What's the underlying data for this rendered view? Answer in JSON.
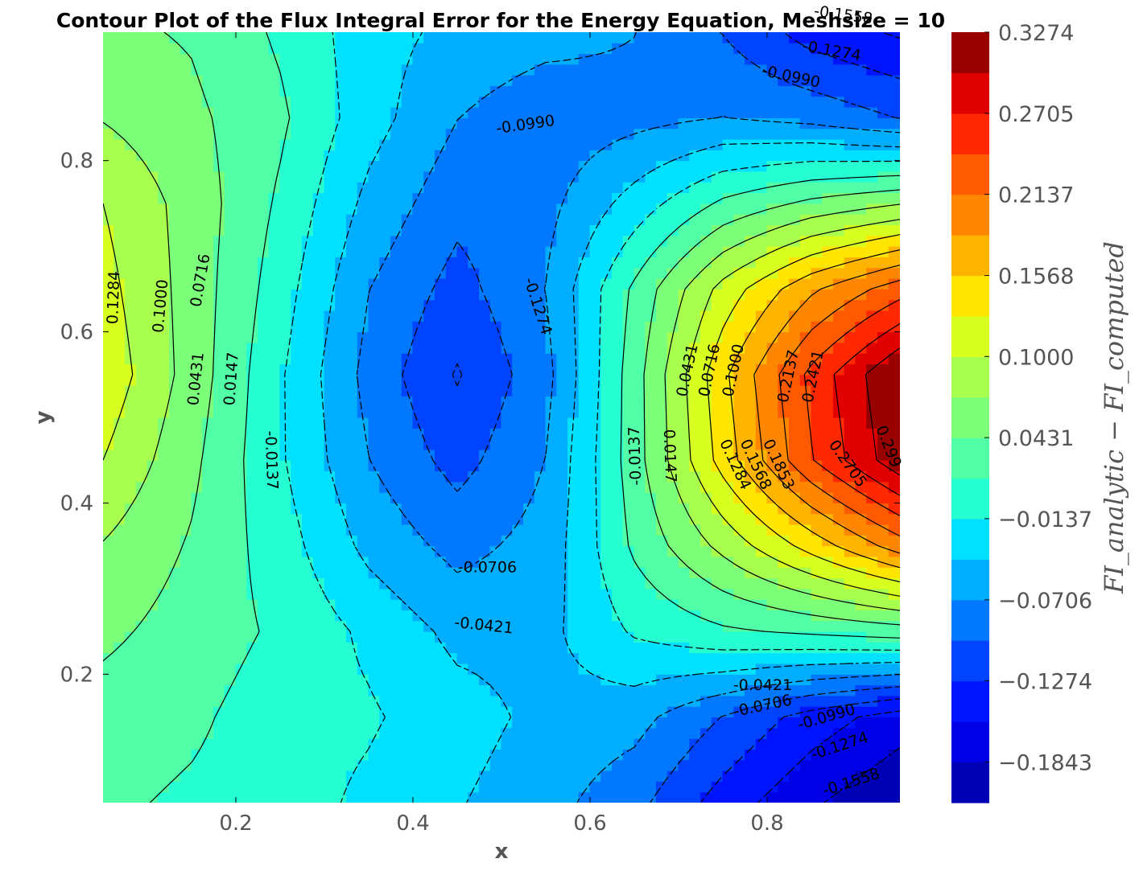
{
  "chart_data": {
    "type": "contour",
    "title": "Contour Plot of the Flux Integral Error for the Energy Equation, Meshsize = 10",
    "xlabel": "x",
    "ylabel": "y",
    "xlim": [
      0.05,
      0.95
    ],
    "ylim": [
      0.05,
      0.95
    ],
    "x_ticks": [
      "0.2",
      "0.4",
      "0.6",
      "0.8"
    ],
    "y_ticks": [
      "0.2",
      "0.4",
      "0.6",
      "0.8"
    ],
    "colorbar": {
      "label": "FI_analytic − FI_computed",
      "range": [
        -0.2128,
        0.3274
      ],
      "tick_labels": [
        "0.3274",
        "0.2705",
        "0.2137",
        "0.1568",
        "0.1000",
        "0.0431",
        "−0.0137",
        "−0.0706",
        "−0.1274",
        "−0.1843"
      ],
      "colors": [
        "#990000",
        "#e10000",
        "#ff2800",
        "#ff5a00",
        "#ff8700",
        "#ffb400",
        "#ffe600",
        "#d7ff1f",
        "#a8ff4d",
        "#7cff79",
        "#50ffa6",
        "#25ffd2",
        "#00e1ff",
        "#00aeff",
        "#0078ff",
        "#0044ff",
        "#0014ff",
        "#0000e6",
        "#0000b4"
      ]
    },
    "levels": [
      -0.2128,
      -0.1843,
      -0.1558,
      -0.1274,
      -0.099,
      -0.0706,
      -0.0421,
      -0.0137,
      0.0147,
      0.0431,
      0.0716,
      0.1,
      0.1284,
      0.1568,
      0.1853,
      0.2137,
      0.2421,
      0.2705,
      0.299,
      0.3274
    ],
    "grid_x": [
      0.05,
      0.15,
      0.25,
      0.35,
      0.45,
      0.55,
      0.65,
      0.75,
      0.85,
      0.95
    ],
    "grid_y": [
      0.05,
      0.15,
      0.25,
      0.35,
      0.45,
      0.55,
      0.65,
      0.75,
      0.85,
      0.95
    ],
    "z": [
      [
        0.02,
        0.01,
        0.0,
        -0.02,
        -0.04,
        -0.06,
        -0.09,
        -0.14,
        -0.18,
        -0.21
      ],
      [
        0.03,
        0.02,
        0.0,
        -0.01,
        -0.03,
        -0.05,
        -0.06,
        -0.1,
        -0.14,
        -0.17
      ],
      [
        0.05,
        0.03,
        0.01,
        -0.02,
        -0.05,
        -0.05,
        -0.01,
        0.01,
        0.02,
        0.03
      ],
      [
        0.07,
        0.04,
        0.0,
        -0.05,
        -0.08,
        -0.06,
        0.02,
        0.08,
        0.14,
        0.2
      ],
      [
        0.1,
        0.05,
        -0.01,
        -0.07,
        -0.11,
        -0.07,
        0.03,
        0.14,
        0.24,
        0.32
      ],
      [
        0.12,
        0.06,
        -0.01,
        -0.08,
        -0.13,
        -0.08,
        0.03,
        0.15,
        0.25,
        0.33
      ],
      [
        0.11,
        0.06,
        0.0,
        -0.07,
        -0.11,
        -0.07,
        0.02,
        0.11,
        0.18,
        0.23
      ],
      [
        0.1,
        0.06,
        0.01,
        -0.05,
        -0.09,
        -0.08,
        -0.03,
        0.02,
        0.05,
        0.07
      ],
      [
        0.07,
        0.05,
        0.02,
        -0.03,
        -0.07,
        -0.09,
        -0.08,
        -0.07,
        -0.08,
        -0.1
      ],
      [
        0.05,
        0.04,
        0.01,
        -0.03,
        -0.05,
        -0.06,
        -0.07,
        -0.1,
        -0.14,
        -0.16
      ]
    ],
    "contour_labels": [
      {
        "text": "0.1284",
        "x": 0.062,
        "y": 0.64,
        "angle": -88
      },
      {
        "text": "0.1000",
        "x": 0.115,
        "y": 0.63,
        "angle": -85
      },
      {
        "text": "0.0716",
        "x": 0.16,
        "y": 0.66,
        "angle": -80
      },
      {
        "text": "0.0431",
        "x": 0.155,
        "y": 0.545,
        "angle": -84
      },
      {
        "text": "0.0147",
        "x": 0.195,
        "y": 0.545,
        "angle": -86
      },
      {
        "text": "-0.0137",
        "x": 0.24,
        "y": 0.45,
        "angle": 88
      },
      {
        "text": "-0.0990",
        "x": 0.527,
        "y": 0.842,
        "angle": -8
      },
      {
        "text": "-0.1274",
        "x": 0.541,
        "y": 0.63,
        "angle": 72
      },
      {
        "text": "-0.0706",
        "x": 0.484,
        "y": 0.325,
        "angle": 0
      },
      {
        "text": "-0.0421",
        "x": 0.48,
        "y": 0.257,
        "angle": 6
      },
      {
        "text": "-0.0137",
        "x": 0.651,
        "y": 0.455,
        "angle": -92
      },
      {
        "text": "0.0147",
        "x": 0.69,
        "y": 0.455,
        "angle": 88
      },
      {
        "text": "0.0431",
        "x": 0.71,
        "y": 0.555,
        "angle": -78
      },
      {
        "text": "0.0716",
        "x": 0.735,
        "y": 0.555,
        "angle": -78
      },
      {
        "text": "0.1000",
        "x": 0.762,
        "y": 0.555,
        "angle": -78
      },
      {
        "text": "0.1284",
        "x": 0.764,
        "y": 0.445,
        "angle": 65
      },
      {
        "text": "0.1568",
        "x": 0.787,
        "y": 0.445,
        "angle": 65
      },
      {
        "text": "0.1853",
        "x": 0.813,
        "y": 0.445,
        "angle": 65
      },
      {
        "text": "0.2137",
        "x": 0.824,
        "y": 0.548,
        "angle": -78
      },
      {
        "text": "0.2421",
        "x": 0.852,
        "y": 0.548,
        "angle": -78
      },
      {
        "text": "0.2705",
        "x": 0.891,
        "y": 0.446,
        "angle": 55
      },
      {
        "text": "0.299",
        "x": 0.937,
        "y": 0.466,
        "angle": 68
      },
      {
        "text": "-0.0990",
        "x": 0.827,
        "y": 0.898,
        "angle": 12
      },
      {
        "text": "-0.1274",
        "x": 0.873,
        "y": 0.928,
        "angle": 10
      },
      {
        "text": "-0.1558",
        "x": 0.886,
        "y": 0.97,
        "angle": 8
      },
      {
        "text": "-0.0421",
        "x": 0.795,
        "y": 0.187,
        "angle": 0
      },
      {
        "text": "-0.0706",
        "x": 0.795,
        "y": 0.163,
        "angle": -12
      },
      {
        "text": "-0.0990",
        "x": 0.867,
        "y": 0.15,
        "angle": -16
      },
      {
        "text": "-0.1274",
        "x": 0.882,
        "y": 0.116,
        "angle": -18
      },
      {
        "text": "-0.1558",
        "x": 0.895,
        "y": 0.074,
        "angle": -18
      }
    ]
  }
}
